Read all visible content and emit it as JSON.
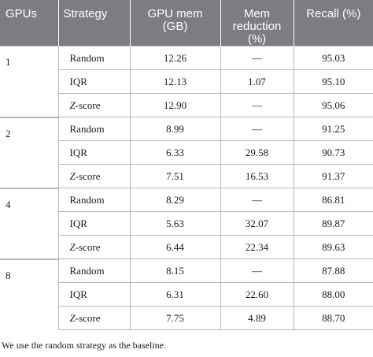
{
  "header": {
    "gpus": "GPUs",
    "strategy": "Strategy",
    "gpu_mem": "GPU mem (GB)",
    "mem_reduction": "Mem reduction (%)",
    "recall": "Recall (%)"
  },
  "groups": [
    {
      "gpus": "1",
      "rows": [
        {
          "strategy": "Random",
          "italic_prefix": "",
          "gpu_mem": "12.26",
          "mem_reduction": "—",
          "recall": "95.03"
        },
        {
          "strategy": "IQR",
          "italic_prefix": "",
          "gpu_mem": "12.13",
          "mem_reduction": "1.07",
          "recall": "95.10"
        },
        {
          "strategy": "-score",
          "italic_prefix": "Z",
          "gpu_mem": "12.90",
          "mem_reduction": "—",
          "recall": "95.06"
        }
      ]
    },
    {
      "gpus": "2",
      "rows": [
        {
          "strategy": "Random",
          "italic_prefix": "",
          "gpu_mem": "8.99",
          "mem_reduction": "—",
          "recall": "91.25"
        },
        {
          "strategy": "IQR",
          "italic_prefix": "",
          "gpu_mem": "6.33",
          "mem_reduction": "29.58",
          "recall": "90.73"
        },
        {
          "strategy": "-score",
          "italic_prefix": "Z",
          "gpu_mem": "7.51",
          "mem_reduction": "16.53",
          "recall": "91.37"
        }
      ]
    },
    {
      "gpus": "4",
      "rows": [
        {
          "strategy": "Random",
          "italic_prefix": "",
          "gpu_mem": "8.29",
          "mem_reduction": "—",
          "recall": "86.81"
        },
        {
          "strategy": "IQR",
          "italic_prefix": "",
          "gpu_mem": "5.63",
          "mem_reduction": "32.07",
          "recall": "89.87"
        },
        {
          "strategy": "-score",
          "italic_prefix": "Z",
          "gpu_mem": "6.44",
          "mem_reduction": "22.34",
          "recall": "89.63"
        }
      ]
    },
    {
      "gpus": "8",
      "rows": [
        {
          "strategy": "Random",
          "italic_prefix": "",
          "gpu_mem": "8.15",
          "mem_reduction": "—",
          "recall": "87.88"
        },
        {
          "strategy": "IQR",
          "italic_prefix": "",
          "gpu_mem": "6.31",
          "mem_reduction": "22.60",
          "recall": "88.00"
        },
        {
          "strategy": "-score",
          "italic_prefix": "Z",
          "gpu_mem": "7.75",
          "mem_reduction": "4.89",
          "recall": "88.70"
        }
      ]
    }
  ],
  "footnote": "We use the random strategy as the baseline."
}
